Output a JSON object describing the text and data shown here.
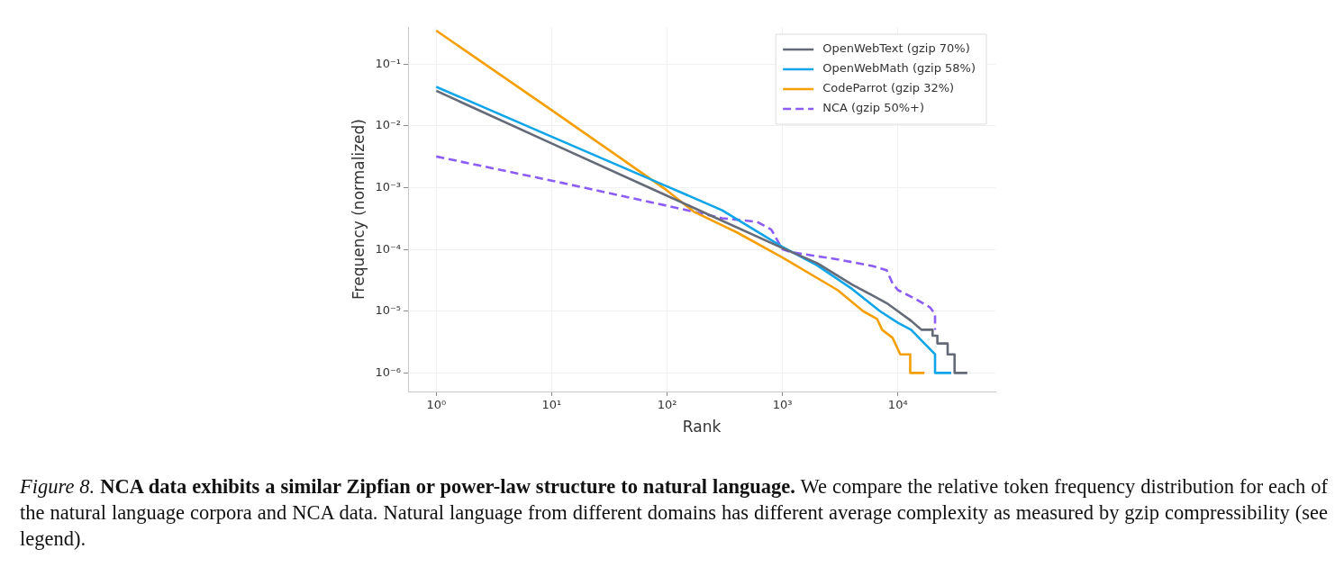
{
  "chart_data": {
    "type": "line",
    "xlabel": "Rank",
    "ylabel": "Frequency (normalized)",
    "log": "xy",
    "grid": true,
    "legend": "top right",
    "marker": "none",
    "xlim": [
      0.57,
      70000
    ],
    "ylim": [
      5e-07,
      0.4
    ],
    "xticks": [
      {
        "value": 1,
        "label": "10⁰"
      },
      {
        "value": 10,
        "label": "10¹"
      },
      {
        "value": 100,
        "label": "10²"
      },
      {
        "value": 1000,
        "label": "10³"
      },
      {
        "value": 10000,
        "label": "10⁴"
      }
    ],
    "yticks": [
      {
        "value": 1e-06,
        "label": "10⁻⁶"
      },
      {
        "value": 1e-05,
        "label": "10⁻⁵"
      },
      {
        "value": 0.0001,
        "label": "10⁻⁴"
      },
      {
        "value": 0.001,
        "label": "10⁻³"
      },
      {
        "value": 0.01,
        "label": "10⁻²"
      },
      {
        "value": 0.1,
        "label": "10⁻¹"
      }
    ],
    "series": [
      {
        "name": "OpenWebText (gzip 70%)",
        "color": "#646a78",
        "line_style": "solid",
        "x": [
          1,
          10,
          100,
          1000,
          2000,
          4000,
          6000,
          8000,
          10000,
          13000,
          16000,
          20000,
          20000,
          22000,
          22000,
          27000,
          27000,
          31000,
          31000,
          40000
        ],
        "values": [
          0.037,
          0.0052,
          0.00074,
          0.000105,
          6e-05,
          2.7e-05,
          1.8e-05,
          1.35e-05,
          1e-05,
          7e-06,
          5e-06,
          5e-06,
          4e-06,
          4e-06,
          3e-06,
          3e-06,
          2e-06,
          2e-06,
          1e-06,
          1e-06
        ]
      },
      {
        "name": "OpenWebMath (gzip 58%)",
        "color": "#10a5e8",
        "line_style": "solid",
        "x": [
          1,
          10,
          100,
          300,
          1000,
          2000,
          4000,
          7000,
          10000,
          13000,
          17000,
          21000,
          21000,
          29000
        ],
        "values": [
          0.043,
          0.0067,
          0.00105,
          0.00043,
          0.00011,
          5.5e-05,
          2.3e-05,
          1e-05,
          6.5e-06,
          5e-06,
          3e-06,
          2e-06,
          1e-06,
          1e-06
        ]
      },
      {
        "name": "CodeParrot (gzip 32%)",
        "color": "#f59f00",
        "line_style": "solid",
        "x": [
          1,
          10,
          100,
          170,
          400,
          1000,
          3000,
          5000,
          6600,
          7300,
          9000,
          10500,
          12800,
          12800,
          17000
        ],
        "values": [
          0.35,
          0.018,
          0.0009,
          0.00041,
          0.00019,
          7.4e-05,
          2.2e-05,
          1e-05,
          7.5e-06,
          5e-06,
          3.7e-06,
          2e-06,
          2e-06,
          1e-06,
          1e-06
        ]
      },
      {
        "name": "NCA (gzip 50%+)",
        "color": "#8b5cf6",
        "line_style": "dashed",
        "x": [
          1,
          10,
          100,
          300,
          600,
          800,
          1000,
          1200,
          3000,
          6000,
          8000,
          9000,
          10000,
          14000,
          19000,
          21000,
          21000
        ],
        "values": [
          0.0032,
          0.0013,
          0.00051,
          0.00032,
          0.00028,
          0.00021,
          0.0001,
          9e-05,
          6.9e-05,
          5.4e-05,
          4.6e-05,
          2.8e-05,
          2.2e-05,
          1.6e-05,
          1.15e-05,
          9e-06,
          5e-06
        ]
      }
    ],
    "annotations": [
      "Figure 8.",
      "NCA data exhibits a similar Zipfian or power-law structure to natural language.",
      "We compare the relative token frequency distribution for each of the natural language corpora and NCA data.  Natural language from different domains has different average complexity as measured by gzip compressibility (see legend)."
    ]
  }
}
